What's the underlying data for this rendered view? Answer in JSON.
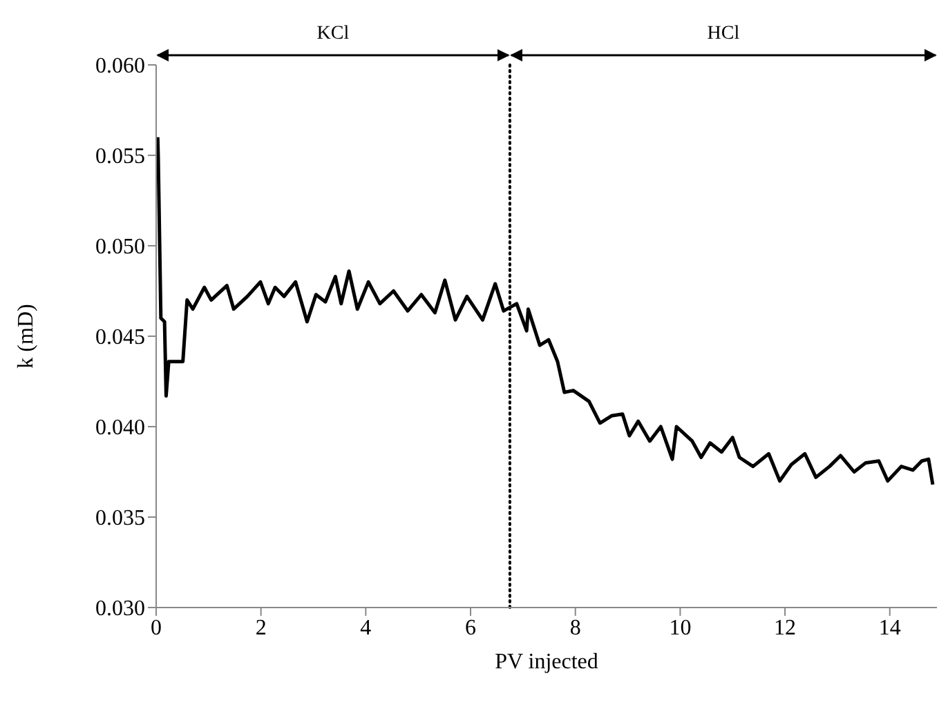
{
  "chart_data": {
    "type": "line",
    "xlabel": "PV injected",
    "ylabel": "k (mD)",
    "xlim": [
      0,
      14.9
    ],
    "xticks": [
      0,
      2,
      4,
      6,
      8,
      10,
      12,
      14
    ],
    "ylim": [
      0.03,
      0.06
    ],
    "yticks": [
      {
        "value": 0.03,
        "label": "0.030"
      },
      {
        "value": 0.035,
        "label": "0.035"
      },
      {
        "value": 0.04,
        "label": "0.040"
      },
      {
        "value": 0.045,
        "label": "0.045"
      },
      {
        "value": 0.05,
        "label": "0.050"
      },
      {
        "value": 0.055,
        "label": "0.055"
      },
      {
        "value": 0.06,
        "label": "0.060"
      }
    ],
    "grid": false,
    "legend": false,
    "marker": "none",
    "line_style": "solid",
    "series": [
      {
        "color": "#000000",
        "x": [
          0.03,
          0.04,
          0.09,
          0.16,
          0.19,
          0.24,
          0.35,
          0.51,
          0.59,
          0.7,
          0.92,
          1.05,
          1.35,
          1.48,
          1.74,
          1.99,
          2.14,
          2.27,
          2.44,
          2.66,
          2.88,
          3.05,
          3.23,
          3.42,
          3.53,
          3.68,
          3.84,
          4.05,
          4.27,
          4.53,
          4.8,
          5.06,
          5.32,
          5.51,
          5.71,
          5.93,
          6.23,
          6.47,
          6.63,
          6.88,
          7.07,
          7.1,
          7.32,
          7.49,
          7.66,
          7.79,
          7.96,
          8.26,
          8.47,
          8.69,
          8.9,
          9.03,
          9.2,
          9.42,
          9.63,
          9.85,
          9.93,
          10.23,
          10.4,
          10.57,
          10.79,
          11.0,
          11.13,
          11.39,
          11.69,
          11.9,
          12.12,
          12.38,
          12.59,
          12.85,
          13.06,
          13.32,
          13.54,
          13.79,
          13.96,
          14.22,
          14.44,
          14.61,
          14.74,
          14.82
        ],
        "values": [
          0.056,
          0.0549,
          0.046,
          0.0458,
          0.0417,
          0.0436,
          0.0436,
          0.0436,
          0.047,
          0.0465,
          0.0477,
          0.047,
          0.0478,
          0.0465,
          0.0472,
          0.048,
          0.0468,
          0.0477,
          0.0472,
          0.048,
          0.0458,
          0.0473,
          0.0469,
          0.0483,
          0.0468,
          0.0486,
          0.0465,
          0.048,
          0.0468,
          0.0475,
          0.0464,
          0.0473,
          0.0463,
          0.0481,
          0.0459,
          0.0472,
          0.0459,
          0.0479,
          0.0464,
          0.0468,
          0.0453,
          0.0465,
          0.0445,
          0.0448,
          0.0436,
          0.0419,
          0.042,
          0.0414,
          0.0402,
          0.0406,
          0.0407,
          0.0395,
          0.0403,
          0.0392,
          0.04,
          0.0382,
          0.04,
          0.0392,
          0.0383,
          0.0391,
          0.0386,
          0.0394,
          0.0383,
          0.0378,
          0.0385,
          0.037,
          0.0379,
          0.0385,
          0.0372,
          0.0378,
          0.0384,
          0.0375,
          0.038,
          0.0381,
          0.037,
          0.0378,
          0.0376,
          0.0381,
          0.0382,
          0.0368
        ]
      }
    ],
    "ref_lines": [
      {
        "axis": "x",
        "value": 6.75,
        "color": "#000000",
        "line_style": "dotted"
      }
    ],
    "annotations": [
      "KCl",
      "HCl"
    ]
  }
}
